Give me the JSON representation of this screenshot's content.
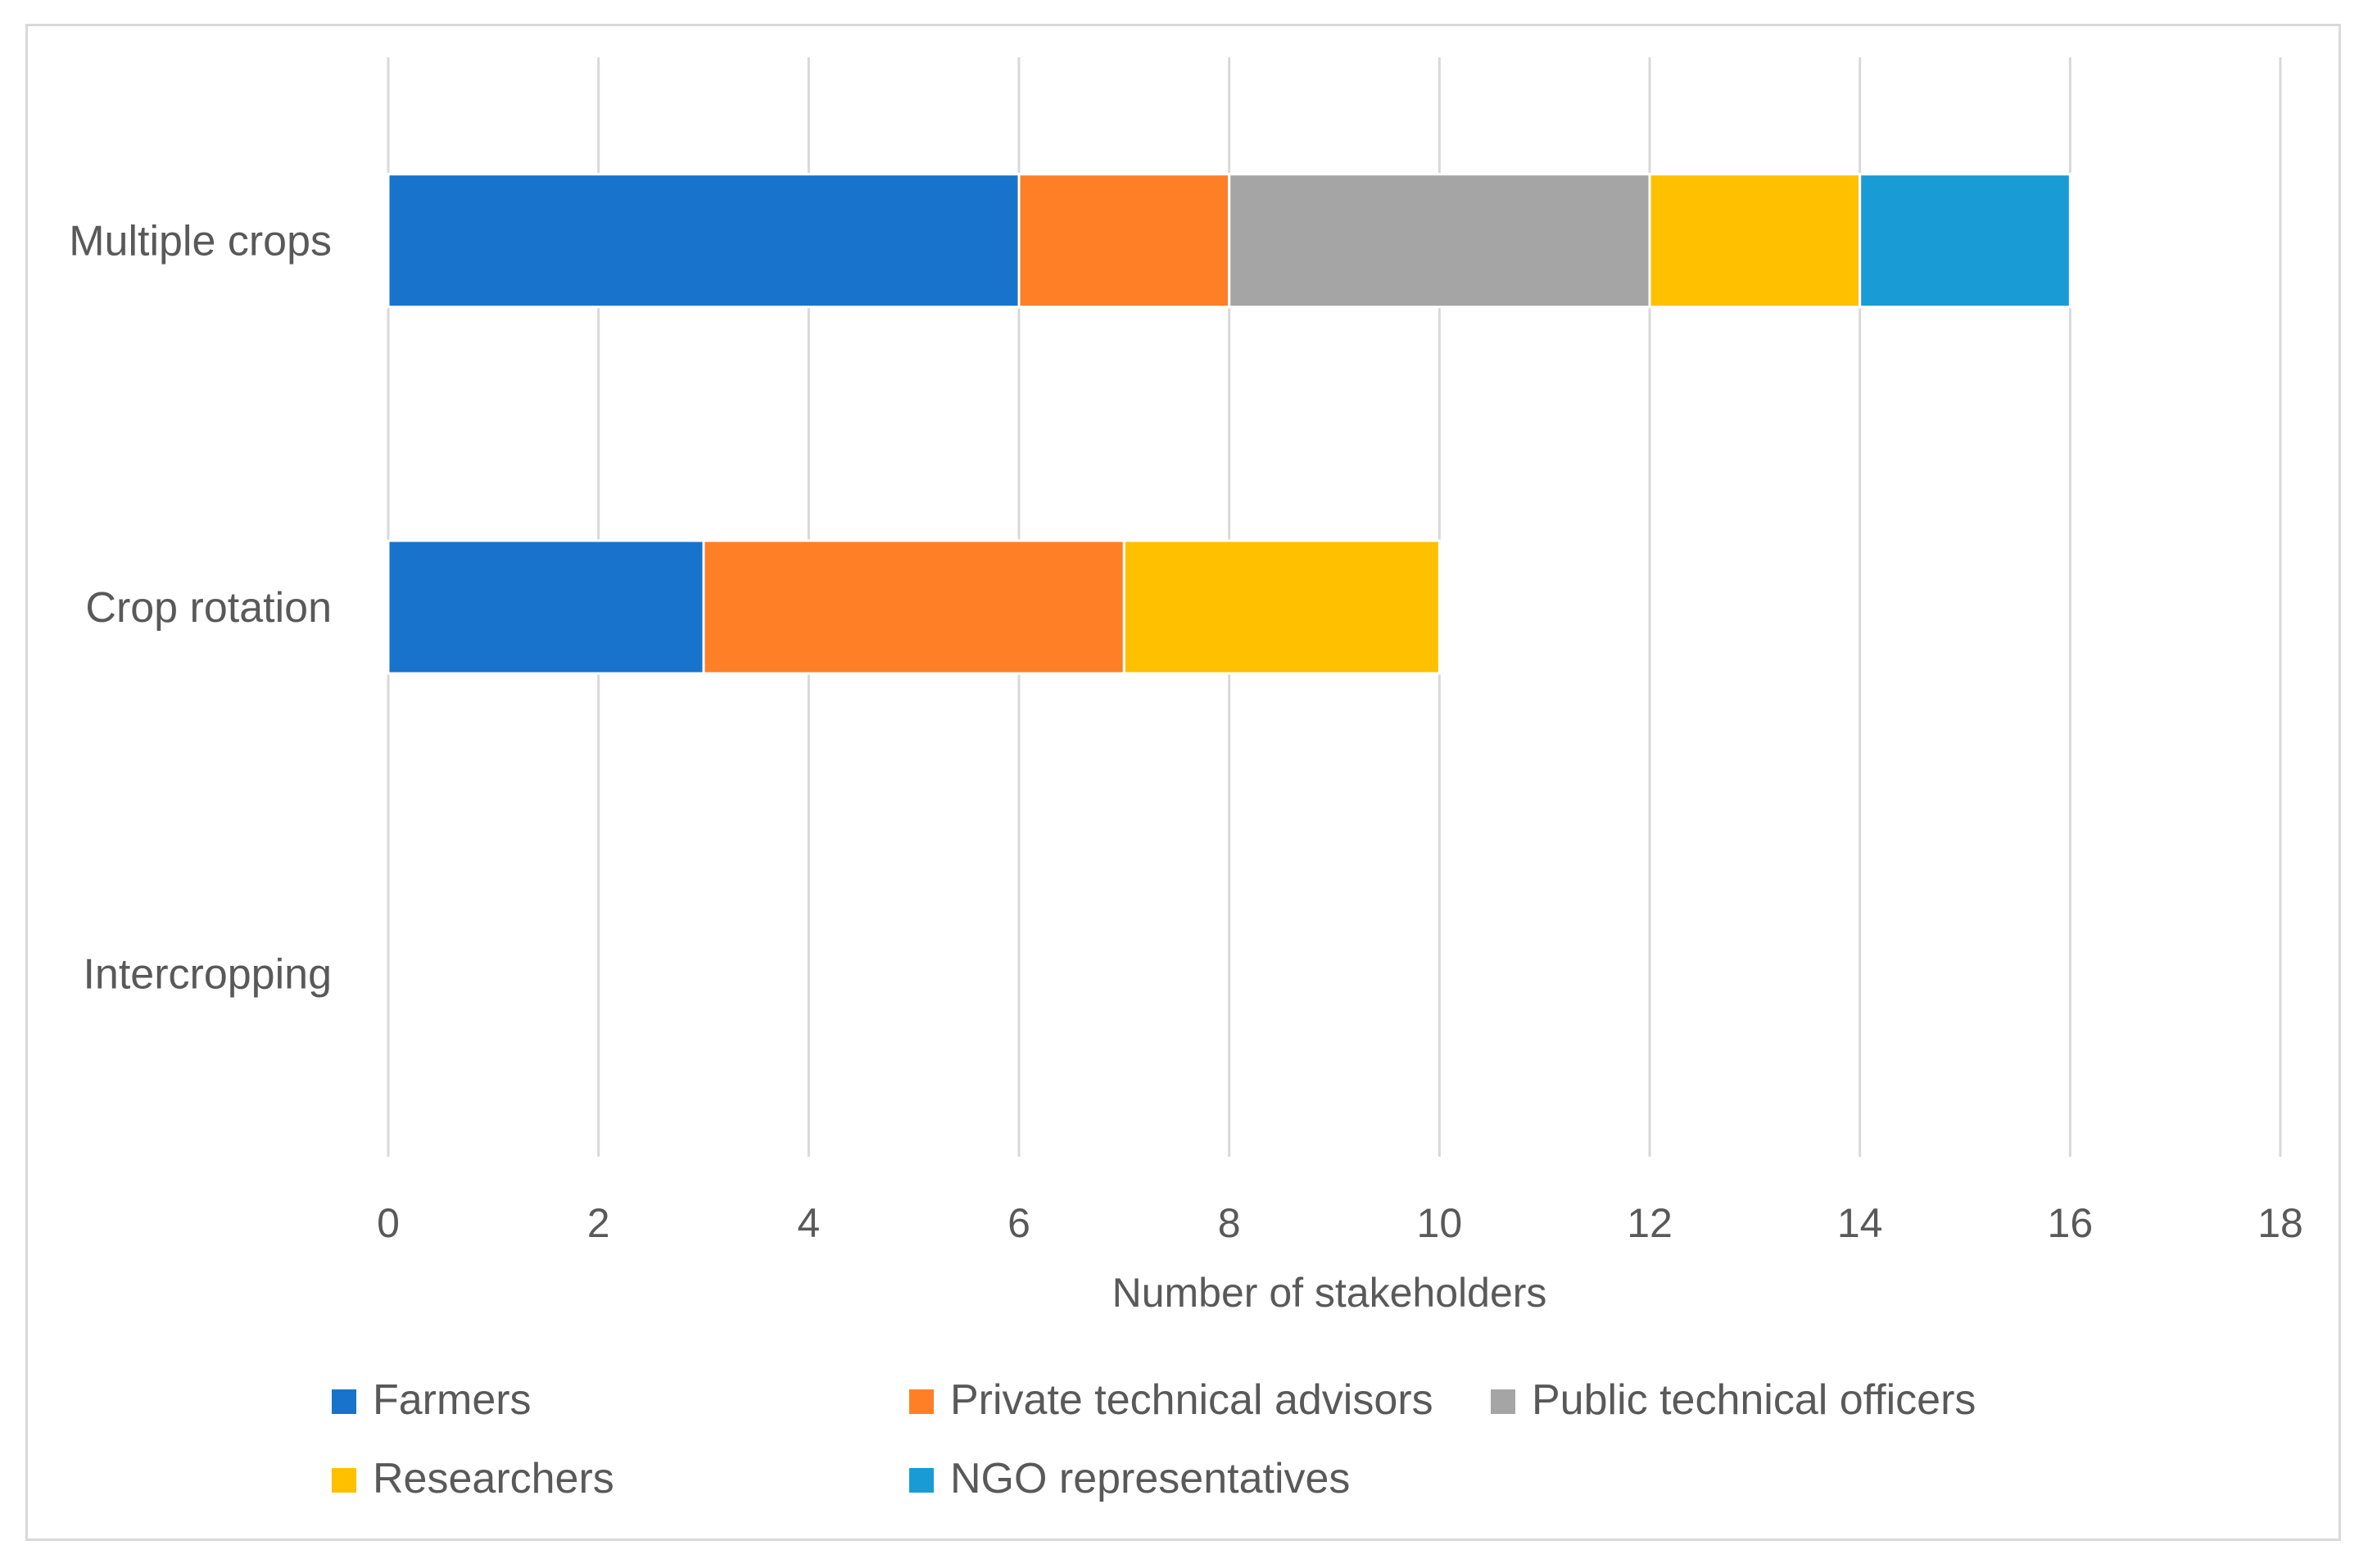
{
  "chart_data": {
    "type": "bar",
    "orientation": "horizontal",
    "stacked": true,
    "title": "",
    "xlabel": "Number of stakeholders",
    "ylabel": "",
    "xlim": [
      0,
      18
    ],
    "x_ticks": [
      0,
      2,
      4,
      6,
      8,
      10,
      12,
      14,
      16,
      18
    ],
    "grid": true,
    "legend_position": "bottom",
    "categories": [
      "Multiple crops",
      "Crop rotation",
      "Intercropping"
    ],
    "series": [
      {
        "name": "Farmers",
        "color": "#1873CC",
        "values": [
          6,
          3,
          0
        ]
      },
      {
        "name": "Private technical advisors",
        "color": "#FF7F27",
        "values": [
          2,
          4,
          0
        ]
      },
      {
        "name": "Public technical officers",
        "color": "#A5A5A5",
        "values": [
          4,
          0,
          0
        ]
      },
      {
        "name": "Researchers",
        "color": "#FFC000",
        "values": [
          2,
          3,
          0
        ]
      },
      {
        "name": "NGO representatives",
        "color": "#199BD6",
        "values": [
          2,
          0,
          0
        ]
      }
    ]
  }
}
